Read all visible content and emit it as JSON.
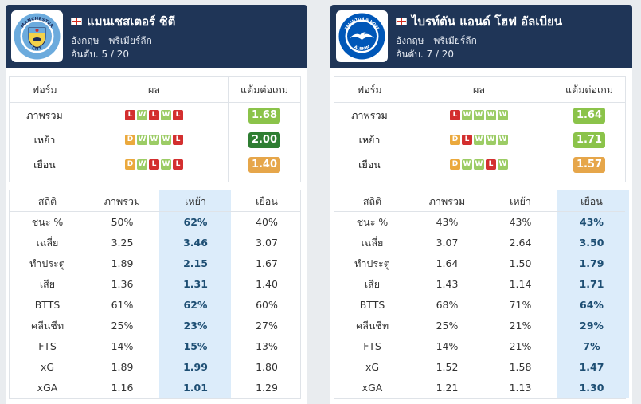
{
  "headers": {
    "form": "ฟอร์ม",
    "result": "ผล",
    "ppg": "แต้มต่อเกม",
    "stats": "สถิติ",
    "overall": "ภาพรวม",
    "home": "เหย้า",
    "away": "เยือน"
  },
  "teams": [
    {
      "name": "แมนเชสเตอร์ ซิตี",
      "league": "อังกฤษ - พรีเมียร์ลีก",
      "rank": "อันดับ. 5 / 20",
      "logo_icon": "manchester-city-crest-icon",
      "highlight_column": 2,
      "form_rows": [
        {
          "label": "ภาพรวม",
          "results": [
            "L",
            "W",
            "L",
            "W",
            "L"
          ],
          "ppg": "1.68",
          "ppg_style": "p-light"
        },
        {
          "label": "เหย้า",
          "results": [
            "D",
            "W",
            "W",
            "W",
            "L"
          ],
          "ppg": "2.00",
          "ppg_style": "p-dark"
        },
        {
          "label": "เยือน",
          "results": [
            "D",
            "W",
            "L",
            "W",
            "L"
          ],
          "ppg": "1.40",
          "ppg_style": "p-orange"
        }
      ],
      "stats": [
        {
          "label": "ชนะ %",
          "overall": "50%",
          "home": "62%",
          "away": "40%"
        },
        {
          "label": "เฉลี่ย",
          "overall": "3.25",
          "home": "3.46",
          "away": "3.07"
        },
        {
          "label": "ทำประตู",
          "overall": "1.89",
          "home": "2.15",
          "away": "1.67"
        },
        {
          "label": "เสีย",
          "overall": "1.36",
          "home": "1.31",
          "away": "1.40"
        },
        {
          "label": "BTTS",
          "overall": "61%",
          "home": "62%",
          "away": "60%"
        },
        {
          "label": "คลีนชีท",
          "overall": "25%",
          "home": "23%",
          "away": "27%"
        },
        {
          "label": "FTS",
          "overall": "14%",
          "home": "15%",
          "away": "13%"
        },
        {
          "label": "xG",
          "overall": "1.89",
          "home": "1.99",
          "away": "1.80"
        },
        {
          "label": "xGA",
          "overall": "1.16",
          "home": "1.01",
          "away": "1.29"
        }
      ]
    },
    {
      "name": "ไบรท์ตัน แอนด์ โฮฟ อัลเบียน",
      "league": "อังกฤษ - พรีเมียร์ลีก",
      "rank": "อันดับ. 7 / 20",
      "logo_icon": "brighton-seagull-crest-icon",
      "highlight_column": 3,
      "form_rows": [
        {
          "label": "ภาพรวม",
          "results": [
            "L",
            "W",
            "W",
            "W",
            "W"
          ],
          "ppg": "1.64",
          "ppg_style": "p-light"
        },
        {
          "label": "เหย้า",
          "results": [
            "D",
            "L",
            "W",
            "W",
            "W"
          ],
          "ppg": "1.71",
          "ppg_style": "p-light"
        },
        {
          "label": "เยือน",
          "results": [
            "D",
            "W",
            "W",
            "L",
            "W"
          ],
          "ppg": "1.57",
          "ppg_style": "p-orange"
        }
      ],
      "stats": [
        {
          "label": "ชนะ %",
          "overall": "43%",
          "home": "43%",
          "away": "43%"
        },
        {
          "label": "เฉลี่ย",
          "overall": "3.07",
          "home": "2.64",
          "away": "3.50"
        },
        {
          "label": "ทำประตู",
          "overall": "1.64",
          "home": "1.50",
          "away": "1.79"
        },
        {
          "label": "เสีย",
          "overall": "1.43",
          "home": "1.14",
          "away": "1.71"
        },
        {
          "label": "BTTS",
          "overall": "68%",
          "home": "71%",
          "away": "64%"
        },
        {
          "label": "คลีนชีท",
          "overall": "25%",
          "home": "21%",
          "away": "29%"
        },
        {
          "label": "FTS",
          "overall": "14%",
          "home": "21%",
          "away": "7%"
        },
        {
          "label": "xG",
          "overall": "1.52",
          "home": "1.58",
          "away": "1.47"
        },
        {
          "label": "xGA",
          "overall": "1.21",
          "home": "1.13",
          "away": "1.30"
        }
      ]
    }
  ],
  "colors": {
    "header_bg": "#1f3557",
    "highlight_bg": "#dcecfa",
    "win": "#9ccc65",
    "loss": "#d32f2f",
    "draw": "#eba93d"
  }
}
